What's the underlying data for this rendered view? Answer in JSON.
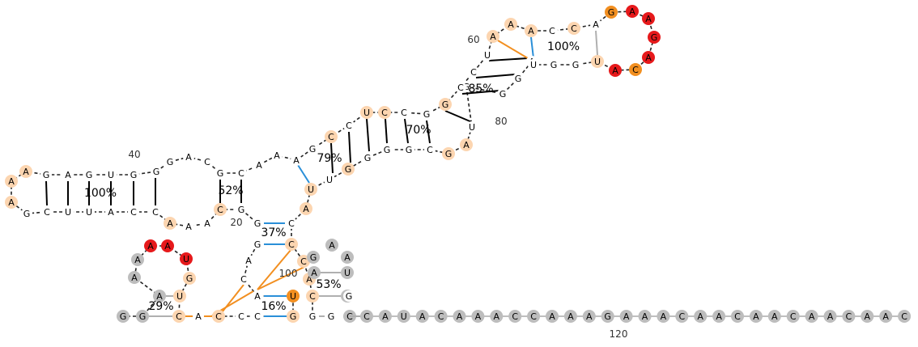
{
  "colors": {
    "grey": "#bdbdbd",
    "peach": "#fcd5b0",
    "orange": "#f28f20",
    "red": "#e6191b",
    "pair_black": "#000000",
    "pair_blue": "#2a8fd8",
    "pair_orange": "#f28f20",
    "pair_grey": "#b0b0b0"
  },
  "labels": {
    "idx_20": "20",
    "idx_40": "40",
    "idx_60": "60",
    "idx_80": "80",
    "idx_100": "100",
    "idx_120": "120"
  },
  "percentages": {
    "p1": "100%",
    "p2": "52%",
    "p3": "79%",
    "p4": "70%",
    "p5": "85%",
    "p6": "100%",
    "p7": "37%",
    "p8": "53%",
    "p9": "29%",
    "p10": "16%"
  },
  "tail": [
    "C",
    "A",
    "U",
    "A",
    "C",
    "A",
    "A",
    "A",
    "C",
    "C",
    "A",
    "A",
    "A",
    "G",
    "A",
    "A",
    "A",
    "C",
    "A",
    "A",
    "C",
    "A",
    "A",
    "C",
    "A",
    "A",
    "C",
    "A",
    "A",
    "C"
  ]
}
